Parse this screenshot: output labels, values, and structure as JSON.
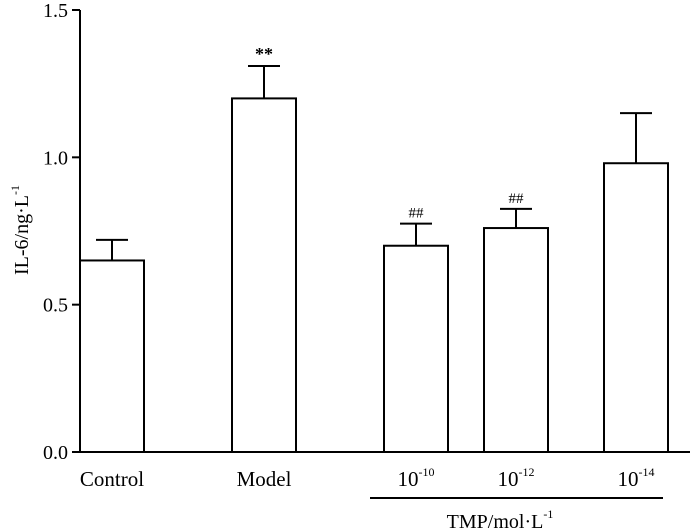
{
  "chart_data": {
    "type": "bar",
    "title": "",
    "ylabel": {
      "main": "IL-6/ng·L",
      "sup": "-1"
    },
    "xlabel": {
      "main": "TMP/mol·L",
      "sup": "-1"
    },
    "ylim": [
      0,
      1.5
    ],
    "yticks": [
      "0.0",
      "0.5",
      "1.0",
      "1.5"
    ],
    "grid": false,
    "bars": [
      {
        "name": "Control",
        "label": {
          "base": "Control",
          "sup": ""
        },
        "value": 0.65,
        "error": 0.07,
        "annotation": ""
      },
      {
        "name": "Model",
        "label": {
          "base": "Model",
          "sup": ""
        },
        "value": 1.2,
        "error": 0.11,
        "annotation": "**"
      },
      {
        "name": "TMP 10^-10",
        "label": {
          "base": "10",
          "sup": "-10"
        },
        "value": 0.7,
        "error": 0.075,
        "annotation": "##"
      },
      {
        "name": "TMP 10^-12",
        "label": {
          "base": "10",
          "sup": "-12"
        },
        "value": 0.76,
        "error": 0.065,
        "annotation": "##"
      },
      {
        "name": "TMP 10^-14",
        "label": {
          "base": "10",
          "sup": "-14"
        },
        "value": 0.98,
        "error": 0.17,
        "annotation": ""
      }
    ],
    "group_bracket": {
      "label": "TMP/mol·L",
      "covers": [
        "10^-10",
        "10^-12",
        "10^-14"
      ]
    }
  }
}
